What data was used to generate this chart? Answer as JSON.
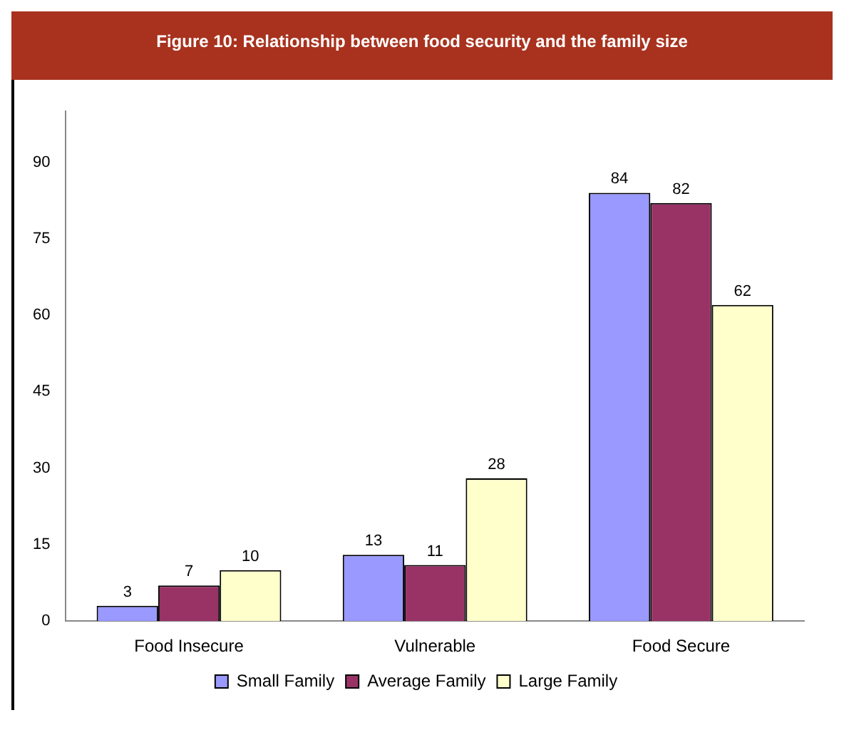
{
  "chart_data": {
    "type": "bar",
    "title": "Figure 10: Relationship between food security and the family size",
    "categories": [
      "Food Insecure",
      "Vulnerable",
      "Food Secure"
    ],
    "series": [
      {
        "name": "Small Family",
        "color": "#9999ff",
        "values": [
          3,
          13,
          84
        ]
      },
      {
        "name": "Average Family",
        "color": "#993366",
        "values": [
          7,
          11,
          82
        ]
      },
      {
        "name": "Large Family",
        "color": "#ffffcc",
        "values": [
          10,
          28,
          62
        ]
      }
    ],
    "ylim": [
      0,
      100
    ],
    "yticks": [
      0,
      15,
      30,
      45,
      60,
      75,
      90
    ],
    "grid": false,
    "legend": "bottom",
    "data_labels": true
  }
}
